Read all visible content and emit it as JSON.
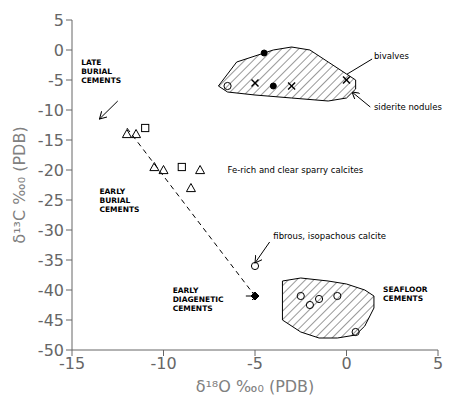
{
  "chart_data": {
    "type": "scatter",
    "xlabel": "δ¹⁸O ‰₀ (PDB)",
    "ylabel": "δ¹³C ‰₀ (PDB)",
    "xlim": [
      -15,
      5
    ],
    "ylim": [
      -50,
      5
    ],
    "xticks": [
      -15,
      -10,
      -5,
      0,
      5
    ],
    "yticks": [
      -50,
      -45,
      -40,
      -35,
      -30,
      -25,
      -20,
      -15,
      -10,
      -5,
      0,
      5
    ],
    "grid": false,
    "series": [
      {
        "type": "polygon",
        "color": "#000000",
        "values": [
          [
            -7,
            -6
          ],
          [
            -6.5,
            -4
          ],
          [
            -6,
            -2
          ],
          [
            -5,
            -1
          ],
          [
            -4,
            0
          ],
          [
            -3,
            0.5
          ],
          [
            -2,
            0
          ],
          [
            -1,
            -2
          ],
          [
            0,
            -4
          ],
          [
            0.5,
            -5
          ],
          [
            0.5,
            -6.5
          ],
          [
            0,
            -8
          ],
          [
            -1,
            -8.5
          ],
          [
            -3,
            -8
          ],
          [
            -5,
            -7.5
          ],
          [
            -6.5,
            -7
          ],
          [
            -7,
            -6
          ]
        ]
      },
      {
        "type": "polygon",
        "color": "#000000",
        "values": [
          [
            -3.5,
            -38.5
          ],
          [
            -2.5,
            -38
          ],
          [
            -1,
            -38.5
          ],
          [
            0,
            -39
          ],
          [
            1,
            -40
          ],
          [
            1.5,
            -41
          ],
          [
            1.5,
            -43
          ],
          [
            1,
            -46
          ],
          [
            0.5,
            -47.5
          ],
          [
            -0.5,
            -48
          ],
          [
            -1.5,
            -48
          ],
          [
            -2.5,
            -47
          ],
          [
            -3.5,
            -45
          ],
          [
            -3.5,
            -42
          ],
          [
            -3.5,
            -38.5
          ]
        ]
      },
      {
        "type": "line",
        "line_style": "dashed",
        "color": "#000000",
        "values": [
          [
            -12,
            -13
          ],
          [
            -5,
            -41
          ]
        ]
      },
      {
        "type": "scatter",
        "marker": "triangle",
        "color": "#000000",
        "values": [
          [
            -12,
            -14
          ],
          [
            -11.5,
            -14
          ],
          [
            -10.5,
            -19.5
          ],
          [
            -10,
            -20
          ],
          [
            -8.5,
            -23
          ]
        ]
      },
      {
        "type": "scatter",
        "marker": "triangle",
        "color": "#000000",
        "values": [
          [
            -8,
            -20
          ]
        ]
      },
      {
        "type": "scatter",
        "marker": "square",
        "color": "#000000",
        "values": [
          [
            -11,
            -13
          ],
          [
            -9,
            -19.5
          ]
        ]
      },
      {
        "type": "scatter",
        "marker": "filled_circle",
        "color": "#000000",
        "values": [
          [
            -4.5,
            -0.5
          ],
          [
            -4,
            -6
          ]
        ]
      },
      {
        "type": "scatter",
        "marker": "x",
        "color": "#000000",
        "values": [
          [
            -5,
            -5.5
          ],
          [
            -3,
            -6
          ],
          [
            0,
            -5
          ]
        ]
      },
      {
        "type": "scatter",
        "marker": "circle",
        "color": "#000000",
        "values": [
          [
            -6.5,
            -6
          ]
        ]
      },
      {
        "type": "scatter",
        "marker": "circle",
        "color": "#000000",
        "values": [
          [
            -2.5,
            -41
          ],
          [
            -1.5,
            -41.5
          ],
          [
            -0.5,
            -41
          ],
          [
            -2,
            -42.5
          ],
          [
            0.5,
            -47
          ]
        ]
      },
      {
        "type": "scatter",
        "marker": "circle",
        "color": "#000000",
        "values": [
          [
            -5,
            -36
          ]
        ]
      },
      {
        "type": "scatter",
        "marker": "filled_diamond",
        "color": "#000000",
        "values": [
          [
            -5,
            -41
          ]
        ]
      }
    ],
    "annotations": [
      {
        "text": "LATE\nBURIAL\nCEMENTS",
        "x": -14.5,
        "y": -3.5
      },
      {
        "text": "EARLY\nBURIAL\nCEMENTS",
        "x": -13.5,
        "y": -25
      },
      {
        "text": "EARLY\nDIAGENETIC\nCEMENTS",
        "x": -9.5,
        "y": -41.5
      },
      {
        "text": "SEAFLOOR\nCEMENTS",
        "x": 2.0,
        "y": -40.5
      },
      {
        "text": "bivalves",
        "x": 1.5,
        "y": -1
      },
      {
        "text": "siderite nodules",
        "x": 1.5,
        "y": -9.5
      },
      {
        "text": "Fe-rich and clear sparry calcites",
        "x": -6.5,
        "y": -20
      },
      {
        "text": "fibrous, isopachous calcite",
        "x": -4,
        "y": -31
      }
    ],
    "arrows": [
      {
        "from": [
          -12.5,
          -8.5
        ],
        "to": [
          -13.5,
          -11.5
        ]
      },
      {
        "from": [
          1.4,
          -1.5
        ],
        "to": [
          -0.5,
          -5
        ]
      },
      {
        "from": [
          1.3,
          -9.5
        ],
        "to": [
          0.3,
          -7
        ]
      },
      {
        "from": [
          -4.2,
          -32
        ],
        "to": [
          -5,
          -35.5
        ]
      },
      {
        "from": [
          -5.5,
          -41
        ],
        "to": [
          -4.8,
          -41
        ]
      }
    ]
  }
}
